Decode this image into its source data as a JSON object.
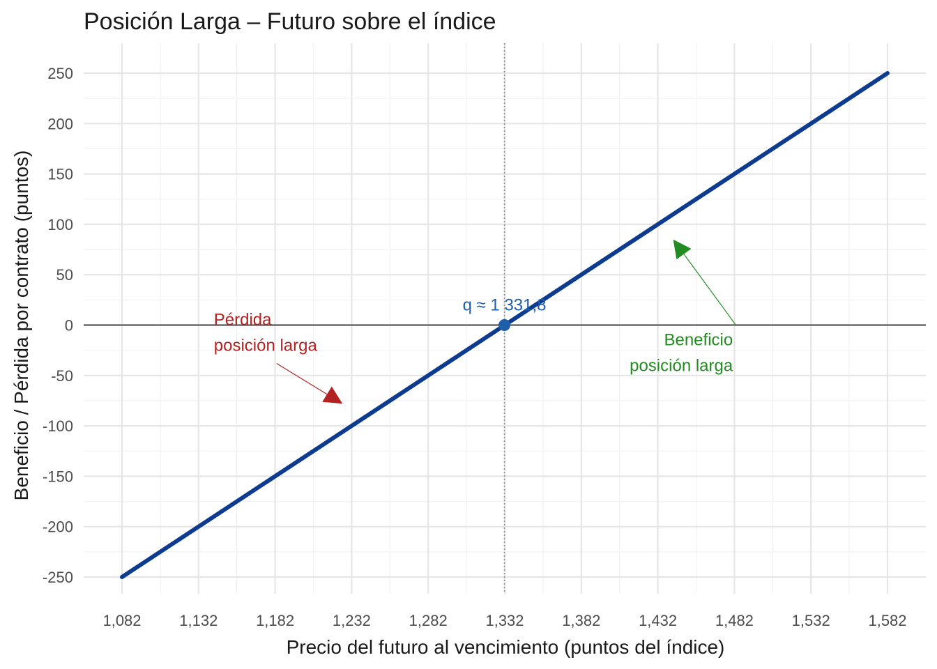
{
  "chart_data": {
    "type": "line",
    "title": "Posición Larga – Futuro sobre el índice",
    "xlabel": "Precio del futuro al vencimiento (puntos del índice)",
    "ylabel": "Beneficio / Pérdida por contrato (puntos)",
    "xlim": [
      1082,
      1582
    ],
    "ylim": [
      -250,
      250
    ],
    "x_ticks": [
      1082,
      1132,
      1182,
      1232,
      1282,
      1332,
      1382,
      1432,
      1482,
      1532,
      1582
    ],
    "x_tick_labels": [
      "1,082",
      "1,132",
      "1,182",
      "1,232",
      "1,282",
      "1,332",
      "1,382",
      "1,432",
      "1,482",
      "1,532",
      "1,582"
    ],
    "y_ticks": [
      -250,
      -200,
      -150,
      -100,
      -50,
      0,
      50,
      100,
      150,
      200,
      250
    ],
    "y_tick_labels": [
      "-250",
      "-200",
      "-150",
      "-100",
      "-50",
      "0",
      "50",
      "100",
      "150",
      "200",
      "250"
    ],
    "grid": true,
    "series": [
      {
        "x": [
          1082,
          1582
        ],
        "y": [
          -250,
          250
        ],
        "color": "#0d3b8f"
      }
    ],
    "breakeven": {
      "x": 1331.8,
      "y": 0,
      "label": "q ≈ 1 331,8",
      "color": "#1f5ea8"
    },
    "reference_lines": {
      "horizontal_y": 0,
      "vertical_x": 1331.8
    },
    "annotations": [
      {
        "lines": [
          "Pérdida",
          "posición larga"
        ],
        "color": "#b22222",
        "text_at": [
          1142,
          0
        ],
        "arrow_to": [
          1226,
          -78
        ]
      },
      {
        "lines": [
          "Beneficio",
          "posición larga"
        ],
        "color": "#228b22",
        "text_at": [
          1481,
          -20
        ],
        "arrow_to": [
          1442,
          85
        ]
      }
    ]
  }
}
